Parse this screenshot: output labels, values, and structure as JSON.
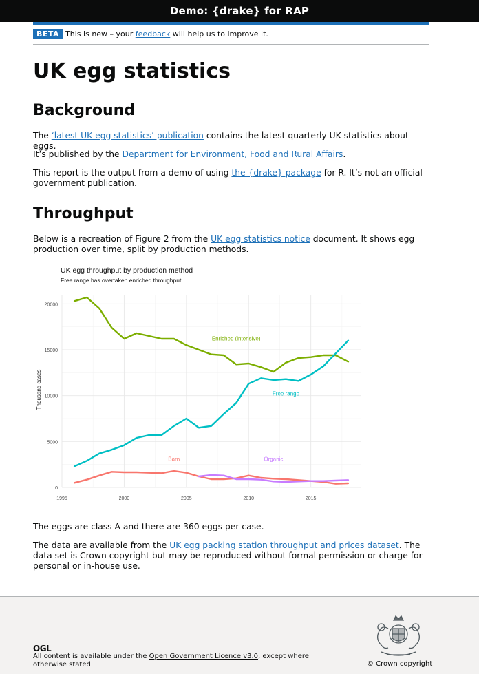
{
  "header": {
    "title": "Demo: {drake} for RAP"
  },
  "beta": {
    "tag": "BETA",
    "text_before": "This is new – your ",
    "link": "feedback",
    "text_after": " will help us to improve it."
  },
  "title": "UK egg statistics",
  "background": {
    "heading": "Background",
    "p1_before": "The ",
    "p1_link": "‘latest UK egg statistics’ publication",
    "p1_after": " contains the latest quarterly UK statistics about eggs.",
    "p2_before": "It’s published by the ",
    "p2_link": "Department for Environment, Food and Rural Affairs",
    "p2_after": ".",
    "p3_before": "This report is the output from a demo of using ",
    "p3_link": "the {drake} package",
    "p3_after": " for R. It’s not an official government publication."
  },
  "throughput": {
    "heading": "Throughput",
    "p1_before": "Below is a recreation of Figure 2 from the ",
    "p1_link": "UK egg statistics notice",
    "p1_after": " document. It shows egg production over time, split by production methods.",
    "p2": "The eggs are class A and there are 360 eggs per case.",
    "p3_before": "The data are available from the ",
    "p3_link": "UK egg packing station throughput and prices dataset",
    "p3_after": ". The data set is Crown copyright but may be reproduced without formal permission or charge for personal or in-house use."
  },
  "chart_data": {
    "type": "line",
    "title": "UK egg throughput by production method",
    "subtitle": "Free range has overtaken enriched throughput",
    "xlabel": "",
    "ylabel": "Thousand cases",
    "xlim": [
      1995,
      2019
    ],
    "ylim": [
      0,
      21000
    ],
    "xticks": [
      1995,
      2000,
      2005,
      2010,
      2015
    ],
    "yticks": [
      0,
      5000,
      10000,
      15000,
      20000
    ],
    "grid": true,
    "x": [
      1996,
      1997,
      1998,
      1999,
      2000,
      2001,
      2002,
      2003,
      2004,
      2005,
      2006,
      2007,
      2008,
      2009,
      2010,
      2011,
      2012,
      2013,
      2014,
      2015,
      2016,
      2017,
      2018
    ],
    "series": [
      {
        "name": "Enriched (intensive)",
        "color": "#7cae00",
        "label_x": 2009,
        "label_y": 16000,
        "values": [
          20300,
          20700,
          19500,
          17400,
          16200,
          16800,
          16500,
          16200,
          16200,
          15500,
          15000,
          14500,
          14400,
          13400,
          13500,
          13100,
          12600,
          13600,
          14100,
          14200,
          14400,
          14400,
          13700
        ]
      },
      {
        "name": "Free range",
        "color": "#00bfc4",
        "label_x": 2013,
        "label_y": 10000,
        "values": [
          2300,
          2900,
          3700,
          4100,
          4600,
          5400,
          5700,
          5700,
          6700,
          7500,
          6500,
          6700,
          8000,
          9200,
          11300,
          11900,
          11700,
          11800,
          11600,
          12300,
          13200,
          14600,
          16000
        ]
      },
      {
        "name": "Barn",
        "color": "#f8766d",
        "label_x": 2004,
        "label_y": 2900,
        "values": [
          500,
          850,
          1300,
          1700,
          1650,
          1650,
          1600,
          1550,
          1800,
          1600,
          1200,
          900,
          900,
          1000,
          1300,
          1050,
          950,
          900,
          800,
          700,
          600,
          400,
          450
        ]
      },
      {
        "name": "Organic",
        "color": "#c77cff",
        "label_x": 2012,
        "label_y": 2900,
        "values": [
          null,
          null,
          null,
          null,
          null,
          null,
          null,
          null,
          null,
          null,
          1200,
          1350,
          1300,
          900,
          900,
          850,
          650,
          600,
          650,
          700,
          700,
          750,
          800
        ]
      }
    ]
  },
  "footer": {
    "ogl": "OGL",
    "licence_before": "All content is available under the ",
    "licence_link": "Open Government Licence v3.0",
    "licence_after": ", except where otherwise stated",
    "copyright": "© Crown copyright"
  }
}
